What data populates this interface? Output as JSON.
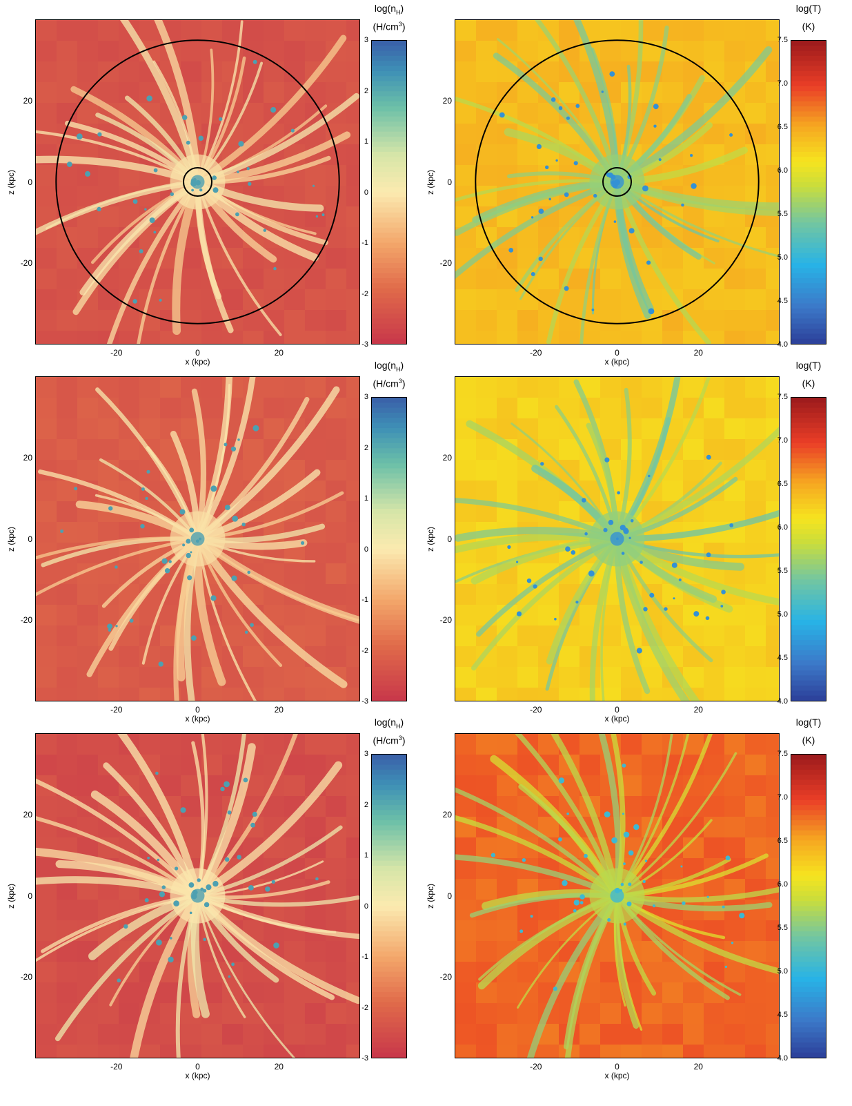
{
  "chart_data": [
    {
      "type": "heatmap",
      "quantity": "density",
      "xlabel": "x (kpc)",
      "ylabel": "z (kpc)",
      "xticks": [
        -20,
        0,
        20
      ],
      "yticks": [
        20,
        0,
        -20
      ],
      "xlim": [
        -40,
        40
      ],
      "ylim": [
        -40,
        40
      ],
      "colorbar": {
        "title_line1": "log(n",
        "title_sub": "H",
        "title_close": ")",
        "title_line2_pre": "(H/cm",
        "title_sup": "3",
        "title_line2_post": ")",
        "ticks": [
          3,
          2,
          1,
          0,
          -1,
          -2,
          -3
        ],
        "range": [
          -3,
          3
        ]
      },
      "circles_radii_kpc": [
        35,
        3.5
      ]
    },
    {
      "type": "heatmap",
      "quantity": "temperature",
      "xlabel": "x (kpc)",
      "ylabel": "z (kpc)",
      "xticks": [
        -20,
        0,
        20
      ],
      "yticks": [
        20,
        0,
        -20
      ],
      "xlim": [
        -40,
        40
      ],
      "ylim": [
        -40,
        40
      ],
      "colorbar": {
        "title_line1": "log(T)",
        "title_line2": "(K)",
        "ticks": [
          "7.5",
          "7.0",
          "6.5",
          "6.0",
          "5.5",
          "5.0",
          "4.5",
          "4.0"
        ],
        "range": [
          4.0,
          7.5
        ]
      },
      "circles_radii_kpc": [
        35,
        3.5
      ]
    },
    {
      "type": "heatmap",
      "quantity": "density",
      "xlabel": "x (kpc)",
      "ylabel": "z (kpc)",
      "xticks": [
        -20,
        0,
        20
      ],
      "yticks": [
        20,
        0,
        -20
      ],
      "xlim": [
        -40,
        40
      ],
      "ylim": [
        -40,
        40
      ],
      "colorbar": {
        "title_line1": "log(n",
        "title_sub": "H",
        "title_close": ")",
        "title_line2_pre": "(H/cm",
        "title_sup": "3",
        "title_line2_post": ")",
        "ticks": [
          3,
          2,
          1,
          0,
          -1,
          -2,
          -3
        ],
        "range": [
          -3,
          3
        ]
      },
      "circles_radii_kpc": []
    },
    {
      "type": "heatmap",
      "quantity": "temperature",
      "xlabel": "x (kpc)",
      "ylabel": "z (kpc)",
      "xticks": [
        -20,
        0,
        20
      ],
      "yticks": [
        20,
        0,
        -20
      ],
      "xlim": [
        -40,
        40
      ],
      "ylim": [
        -40,
        40
      ],
      "colorbar": {
        "title_line1": "log(T)",
        "title_line2": "(K)",
        "ticks": [
          "7.5",
          "7.0",
          "6.5",
          "6.0",
          "5.5",
          "5.0",
          "4.5",
          "4.0"
        ],
        "range": [
          4.0,
          7.5
        ]
      },
      "circles_radii_kpc": []
    },
    {
      "type": "heatmap",
      "quantity": "density",
      "xlabel": "x (kpc)",
      "ylabel": "z (kpc)",
      "xticks": [
        -20,
        0,
        20
      ],
      "yticks": [
        20,
        0,
        -20
      ],
      "xlim": [
        -40,
        40
      ],
      "ylim": [
        -40,
        40
      ],
      "colorbar": {
        "title_line1": "log(n",
        "title_sub": "H",
        "title_close": ")",
        "title_line2_pre": "(H/cm",
        "title_sup": "3",
        "title_line2_post": ")",
        "ticks": [
          3,
          2,
          1,
          0,
          -1,
          -2,
          -3
        ],
        "range": [
          -3,
          3
        ]
      },
      "circles_radii_kpc": []
    },
    {
      "type": "heatmap",
      "quantity": "temperature",
      "xlabel": "x (kpc)",
      "ylabel": "z (kpc)",
      "xticks": [
        -20,
        0,
        20
      ],
      "yticks": [
        20,
        0,
        -20
      ],
      "xlim": [
        -40,
        40
      ],
      "ylim": [
        -40,
        40
      ],
      "colorbar": {
        "title_line1": "log(T)",
        "title_line2": "(K)",
        "ticks": [
          "7.5",
          "7.0",
          "6.5",
          "6.0",
          "5.5",
          "5.0",
          "4.5",
          "4.0"
        ],
        "range": [
          4.0,
          7.5
        ]
      },
      "circles_radii_kpc": []
    }
  ],
  "colors": {
    "density_low": "#c8374a",
    "density_mid": "#f9e7a6",
    "density_high": "#3a6fb0",
    "temp_low": "#2c3f99",
    "temp_mid": "#f2e51f",
    "temp_high": "#9b1a1c"
  }
}
